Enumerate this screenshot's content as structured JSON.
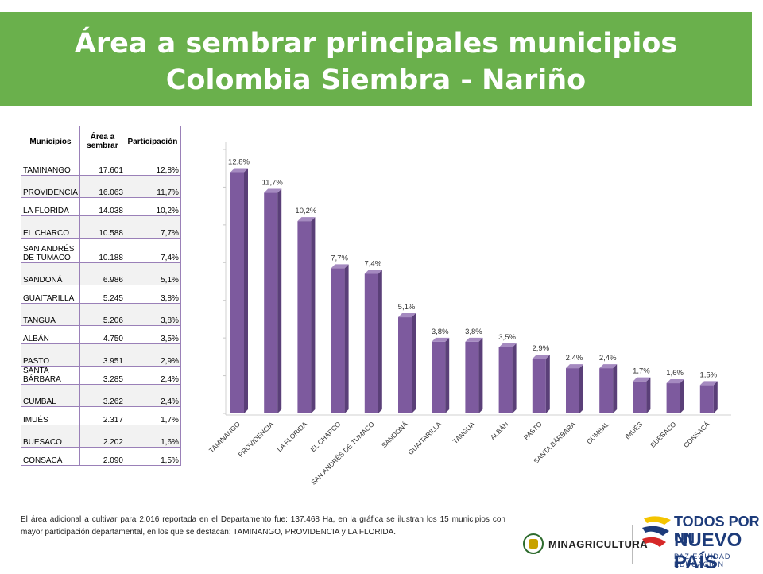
{
  "header": {
    "title_line1": "Área a sembrar principales municipios",
    "title_line2": "Colombia Siembra - Nariño"
  },
  "table": {
    "headers": [
      "Municipios",
      "Área a sembrar",
      "Participación"
    ],
    "rows": [
      [
        "TAMINANGO",
        "17.601",
        "12,8%"
      ],
      [
        "PROVIDENCIA",
        "16.063",
        "11,7%"
      ],
      [
        "LA FLORIDA",
        "14.038",
        "10,2%"
      ],
      [
        "EL CHARCO",
        "10.588",
        "7,7%"
      ],
      [
        "SAN ANDRÉS DE TUMACO",
        "10.188",
        "7,4%"
      ],
      [
        "SANDONÁ",
        "6.986",
        "5,1%"
      ],
      [
        "GUAITARILLA",
        "5.245",
        "3,8%"
      ],
      [
        "TANGUA",
        "5.206",
        "3,8%"
      ],
      [
        "ALBÁN",
        "4.750",
        "3,5%"
      ],
      [
        "PASTO",
        "3.951",
        "2,9%"
      ],
      [
        "SANTA BÁRBARA",
        "3.285",
        "2,4%"
      ],
      [
        "CUMBAL",
        "3.262",
        "2,4%"
      ],
      [
        "IMUÉS",
        "2.317",
        "1,7%"
      ],
      [
        "BUESACO",
        "2.202",
        "1,6%"
      ],
      [
        "CONSACÁ",
        "2.090",
        "1,5%"
      ]
    ]
  },
  "chart_data": {
    "type": "bar",
    "categories": [
      "TAMINANGO",
      "PROVIDENCIA",
      "LA FLORIDA",
      "EL CHARCO",
      "SAN ANDRÉS DE TUMACO",
      "SANDONÁ",
      "GUAITARILLA",
      "TANGUA",
      "ALBÁN",
      "PASTO",
      "SANTA BÁRBARA",
      "CUMBAL",
      "IMUÉS",
      "BUESACO",
      "CONSACÁ"
    ],
    "values": [
      12.8,
      11.7,
      10.2,
      7.7,
      7.4,
      5.1,
      3.8,
      3.8,
      3.5,
      2.9,
      2.4,
      2.4,
      1.7,
      1.6,
      1.5
    ],
    "data_labels": [
      "12,8%",
      "11,7%",
      "10,2%",
      "7,7%",
      "7,4%",
      "5,1%",
      "3,8%",
      "3,8%",
      "3,5%",
      "2,9%",
      "2,4%",
      "2,4%",
      "1,7%",
      "1,6%",
      "1,5%"
    ],
    "ylim": [
      0,
      14
    ],
    "grid": false,
    "bar_color": "#7d5a9e",
    "style": "3d-column"
  },
  "footer": {
    "text": "El área adicional a cultivar para 2.016 reportada en el Departamento fue: 137.468 Ha, en la gráfica se ilustran los 15 municipios con mayor participación departamental,  en los que se destacan: TAMINANGO, PROVIDENCIA y LA FLORIDA."
  },
  "logos": {
    "ministry": "MINAGRICULTURA",
    "campaign_line1": "TODOS POR UN",
    "campaign_line2": "NUEVO PAÍS",
    "campaign_line3": "PAZ  EQUIDAD  EDUCACIÓN"
  },
  "colors": {
    "banner": "#6ab04c",
    "bar": "#7d5a9e",
    "table_border": "#9a80b8"
  }
}
